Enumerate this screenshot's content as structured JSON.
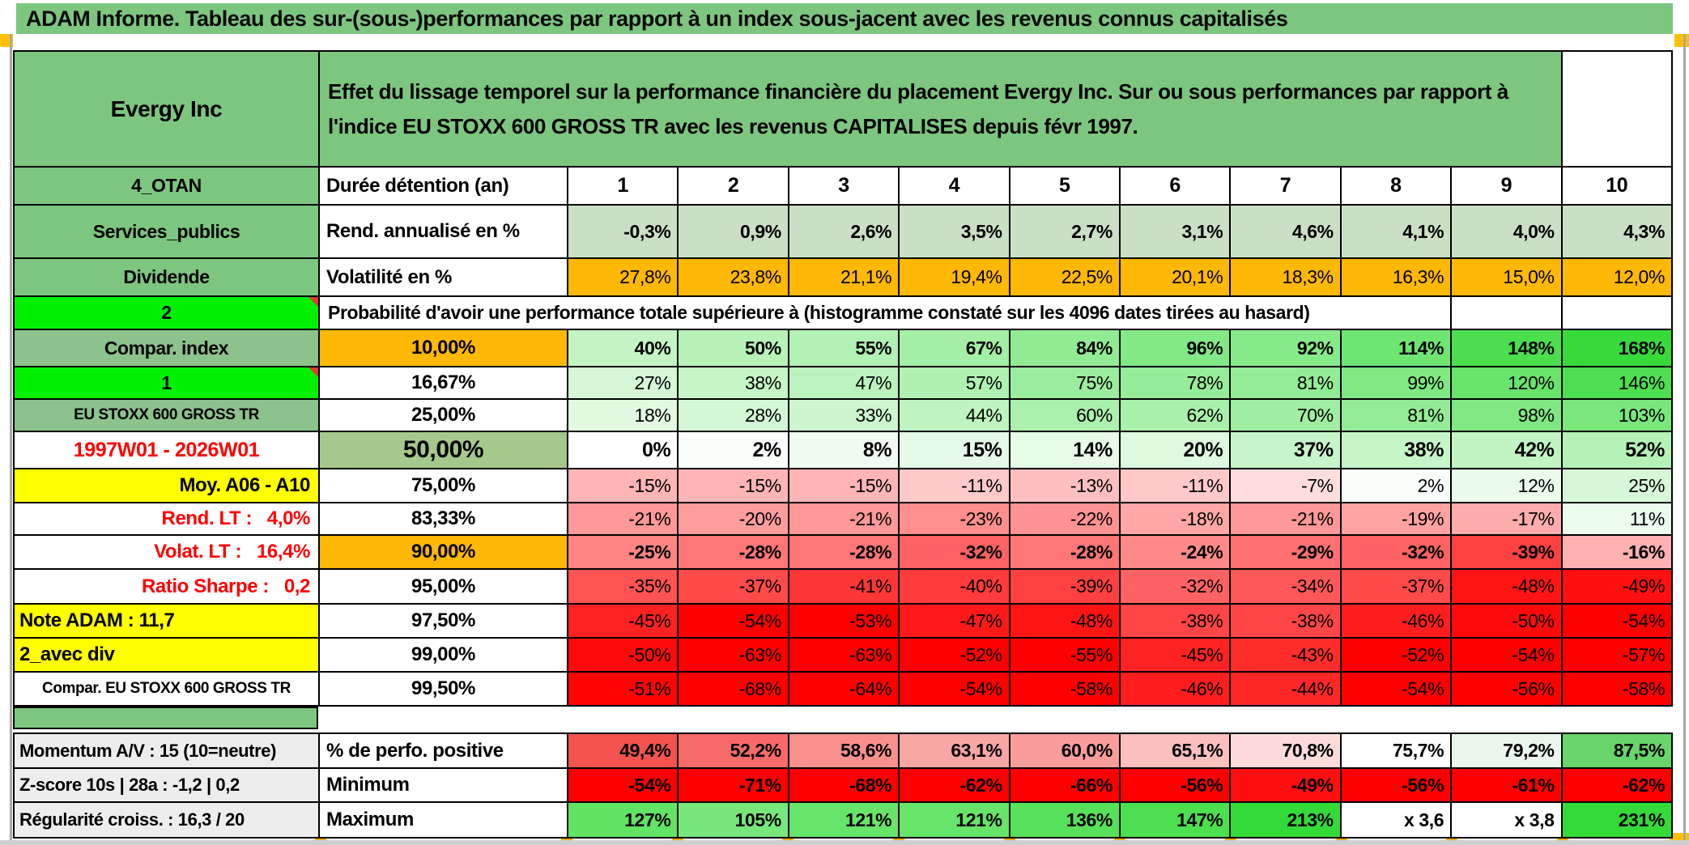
{
  "window": {
    "title": "ADAM Informe. Tableau des sur-(sous-)performances par rapport à un index sous-jacent avec les revenus connus capitalisés"
  },
  "colors": {
    "green_header": "#7DC67F",
    "green_sage": "#8CC28C",
    "green_lime": "#00F000",
    "green_olive": "#A5C98C",
    "green_light_fill": "#CBDFC5",
    "orange_fill": "#FFB805",
    "yellow_fill": "#FFFF00",
    "gray_label_fill": "#EDEDED",
    "red_full": "#FF0000",
    "green_full": "#34DB38",
    "accent_square": "#FFC000",
    "marker_red": "#E03C31"
  },
  "header": {
    "company": "Evergy Inc",
    "description": "Effet du lissage temporel sur la performance financière du placement Evergy Inc. Sur ou sous performances par rapport à l'indice EU STOXX 600 GROSS TR avec les revenus CAPITALISES depuis févr 1997."
  },
  "top_rows": [
    {
      "label": "4_OTAN",
      "label_style": "green",
      "param": "Durée détention (an)",
      "cells": [
        "1",
        "2",
        "3",
        "4",
        "5",
        "6",
        "7",
        "8",
        "9",
        "10"
      ],
      "cell_style": "center",
      "cell_bg": "#FFFFFF"
    },
    {
      "label": "Services_publics",
      "label_style": "green",
      "param": "Rend. annualisé en %",
      "cells": [
        "-0,3%",
        "0,9%",
        "2,6%",
        "3,5%",
        "2,7%",
        "3,1%",
        "4,6%",
        "4,1%",
        "4,0%",
        "4,3%"
      ],
      "cell_style": "bold",
      "cell_bg": "#CBDFC5"
    },
    {
      "label": "Dividende",
      "label_style": "green",
      "param": "Volatilité en %",
      "cells": [
        "27,8%",
        "23,8%",
        "21,1%",
        "19,4%",
        "22,5%",
        "20,1%",
        "18,3%",
        "16,3%",
        "15,0%",
        "12,0%"
      ],
      "cell_style": "",
      "cell_bg": "#FFB805"
    }
  ],
  "prob_banner": {
    "label": "2",
    "label_style": "lime",
    "has_comment_marker": true,
    "text": "Probabilité d'avoir une performance totale supérieure à (histogramme constaté sur les 4096 dates tirées au hasard)"
  },
  "prob_rows": [
    {
      "label": "Compar. index",
      "label_style": "sage",
      "pct": "10,00%",
      "pct_bg": "#FFB805",
      "bold": true,
      "values": [
        40,
        50,
        55,
        67,
        84,
        96,
        92,
        114,
        148,
        168
      ]
    },
    {
      "label": "1",
      "label_style": "lime",
      "has_comment_marker": true,
      "pct": "16,67%",
      "values": [
        27,
        38,
        47,
        57,
        75,
        78,
        81,
        99,
        120,
        146
      ]
    },
    {
      "label": "EU STOXX 600 GROSS TR",
      "label_style": "sage small",
      "pct": "25,00%",
      "values": [
        18,
        28,
        33,
        44,
        60,
        62,
        70,
        81,
        98,
        103
      ]
    },
    {
      "label": "1997W01 - 2026W01",
      "label_style": "redC",
      "pct": "50,00%",
      "pct_bg": "#A5C98C",
      "pct_big": true,
      "bold": true,
      "big": true,
      "values": [
        0,
        2,
        8,
        15,
        14,
        20,
        37,
        38,
        42,
        52
      ]
    },
    {
      "label": "Moy. A06 - A10",
      "label_style": "yellowR",
      "pct": "75,00%",
      "values": [
        -15,
        -15,
        -15,
        -11,
        -13,
        -11,
        -7,
        2,
        12,
        25
      ]
    },
    {
      "label": "Rend. LT :   4,0%",
      "label_style": "redR",
      "pct": "83,33%",
      "values": [
        -21,
        -20,
        -21,
        -23,
        -22,
        -18,
        -21,
        -19,
        -17,
        11
      ]
    },
    {
      "label": "Volat. LT :   16,4%",
      "label_style": "redR",
      "pct": "90,00%",
      "pct_bg": "#FFB805",
      "bold": true,
      "values": [
        -25,
        -28,
        -28,
        -32,
        -28,
        -24,
        -29,
        -32,
        -39,
        -16
      ]
    },
    {
      "label": "Ratio Sharpe :   0,2",
      "label_style": "redR",
      "pct": "95,00%",
      "values": [
        -35,
        -37,
        -41,
        -40,
        -39,
        -32,
        -34,
        -37,
        -48,
        -49
      ]
    },
    {
      "label": "Note ADAM : 11,7",
      "label_style": "yellowL",
      "pct": "97,50%",
      "values": [
        -45,
        -54,
        -53,
        -47,
        -48,
        -38,
        -38,
        -46,
        -50,
        -54
      ]
    },
    {
      "label": "2_avec div",
      "label_style": "yellowL",
      "pct": "99,00%",
      "values": [
        -50,
        -63,
        -63,
        -52,
        -55,
        -45,
        -43,
        -52,
        -54,
        -57
      ]
    },
    {
      "label": "Compar. EU STOXX 600 GROSS TR",
      "label_style": "small",
      "pct": "99,50%",
      "values": [
        -51,
        -68,
        -64,
        -54,
        -58,
        -46,
        -44,
        -54,
        -56,
        -58
      ]
    }
  ],
  "footer_rows": [
    {
      "label": "Momentum A/V : 15 (10=neutre)",
      "param": "% de perfo. positive",
      "cells": [
        "49,4%",
        "52,2%",
        "58,6%",
        "63,1%",
        "60,0%",
        "65,1%",
        "70,8%",
        "75,7%",
        "79,2%",
        "87,5%"
      ],
      "colors": [
        "#F4534F",
        "#F66B68",
        "#F8908E",
        "#F9A7A5",
        "#F99D9B",
        "#FBBFBD",
        "#FCDBDA",
        "#FEFFFE",
        "#E9F8EA",
        "#68D56A"
      ]
    },
    {
      "label": "Z-score 10s | 28a : -1,2 | 0,2",
      "param": "Minimum",
      "cells": [
        "-54%",
        "-71%",
        "-68%",
        "-62%",
        "-66%",
        "-56%",
        "-49%",
        "-56%",
        "-61%",
        "-62%"
      ],
      "values": [
        -54,
        -71,
        -68,
        -62,
        -66,
        -56,
        -49,
        -56,
        -61,
        -62
      ]
    },
    {
      "label": "Régularité croiss. : 16,3 / 20",
      "param": "Maximum",
      "cells": [
        "127%",
        "105%",
        "121%",
        "121%",
        "136%",
        "147%",
        "213%",
        "x 3,6",
        "x 3,8",
        "231%"
      ],
      "values": [
        127,
        105,
        121,
        121,
        136,
        147,
        213,
        null,
        null,
        231
      ]
    }
  ]
}
